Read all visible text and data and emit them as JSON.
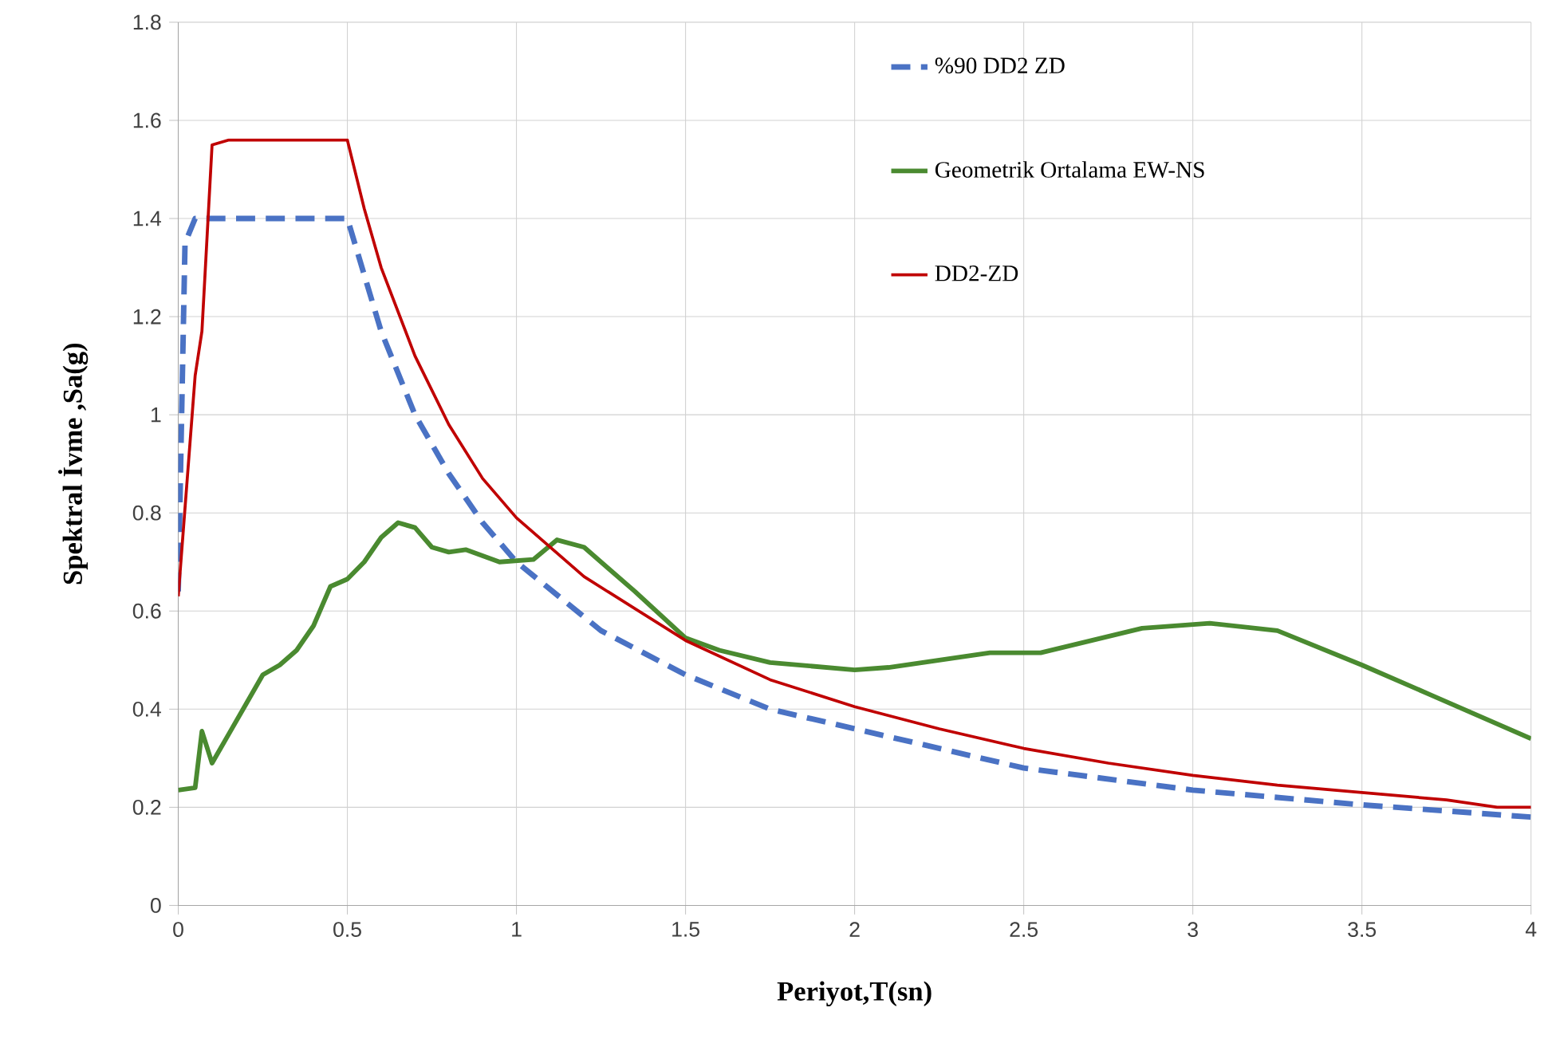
{
  "chart_data": {
    "type": "line",
    "xlabel": "Periyot,T(sn)",
    "ylabel": "Spektral İvme ,Sa(g)",
    "xlim": [
      0,
      4
    ],
    "ylim": [
      0,
      1.8
    ],
    "xticks": [
      0,
      0.5,
      1,
      1.5,
      2,
      2.5,
      3,
      3.5,
      4
    ],
    "yticks": [
      0,
      0.2,
      0.4,
      0.6,
      0.8,
      1,
      1.2,
      1.4,
      1.6,
      1.8
    ],
    "grid": true,
    "legend": "top right",
    "marker": "none",
    "series": [
      {
        "name": "%90 DD2 ZD",
        "color": "#4a72c4",
        "line_style": "dashed",
        "x": [
          0,
          0.01,
          0.02,
          0.05,
          0.5,
          0.6,
          0.7,
          0.8,
          0.9,
          1.0,
          1.25,
          1.5,
          1.75,
          2,
          2.5,
          3,
          3.5,
          4
        ],
        "values": [
          0.64,
          1.0,
          1.35,
          1.4,
          1.4,
          1.17,
          1.0,
          0.88,
          0.78,
          0.7,
          0.56,
          0.47,
          0.4,
          0.36,
          0.28,
          0.235,
          0.205,
          0.18
        ]
      },
      {
        "name": "Geometrik Ortalama EW-NS",
        "color": "#4a8a30",
        "line_style": "solid",
        "x": [
          0,
          0.05,
          0.07,
          0.1,
          0.15,
          0.2,
          0.25,
          0.3,
          0.35,
          0.4,
          0.45,
          0.5,
          0.55,
          0.6,
          0.65,
          0.7,
          0.75,
          0.8,
          0.85,
          0.95,
          1.05,
          1.12,
          1.2,
          1.35,
          1.5,
          1.6,
          1.75,
          2.0,
          2.1,
          2.4,
          2.55,
          2.85,
          3.05,
          3.25,
          3.5,
          3.7,
          4
        ],
        "values": [
          0.235,
          0.24,
          0.355,
          0.29,
          0.35,
          0.41,
          0.47,
          0.49,
          0.52,
          0.57,
          0.65,
          0.665,
          0.7,
          0.75,
          0.78,
          0.77,
          0.73,
          0.72,
          0.725,
          0.7,
          0.705,
          0.745,
          0.73,
          0.64,
          0.545,
          0.52,
          0.495,
          0.48,
          0.485,
          0.515,
          0.515,
          0.565,
          0.575,
          0.56,
          0.49,
          0.43,
          0.34
        ]
      },
      {
        "name": "DD2-ZD",
        "color": "#c00000",
        "line_style": "solid",
        "x": [
          0,
          0.03,
          0.05,
          0.07,
          0.1,
          0.15,
          0.5,
          0.55,
          0.6,
          0.7,
          0.8,
          0.9,
          1.0,
          1.2,
          1.5,
          1.75,
          2,
          2.25,
          2.5,
          2.75,
          3,
          3.25,
          3.5,
          3.75,
          3.9,
          4
        ],
        "values": [
          0.63,
          0.9,
          1.08,
          1.17,
          1.55,
          1.56,
          1.56,
          1.42,
          1.3,
          1.12,
          0.98,
          0.87,
          0.79,
          0.67,
          0.54,
          0.46,
          0.405,
          0.36,
          0.32,
          0.29,
          0.265,
          0.245,
          0.23,
          0.215,
          0.2,
          0.2
        ]
      }
    ]
  }
}
